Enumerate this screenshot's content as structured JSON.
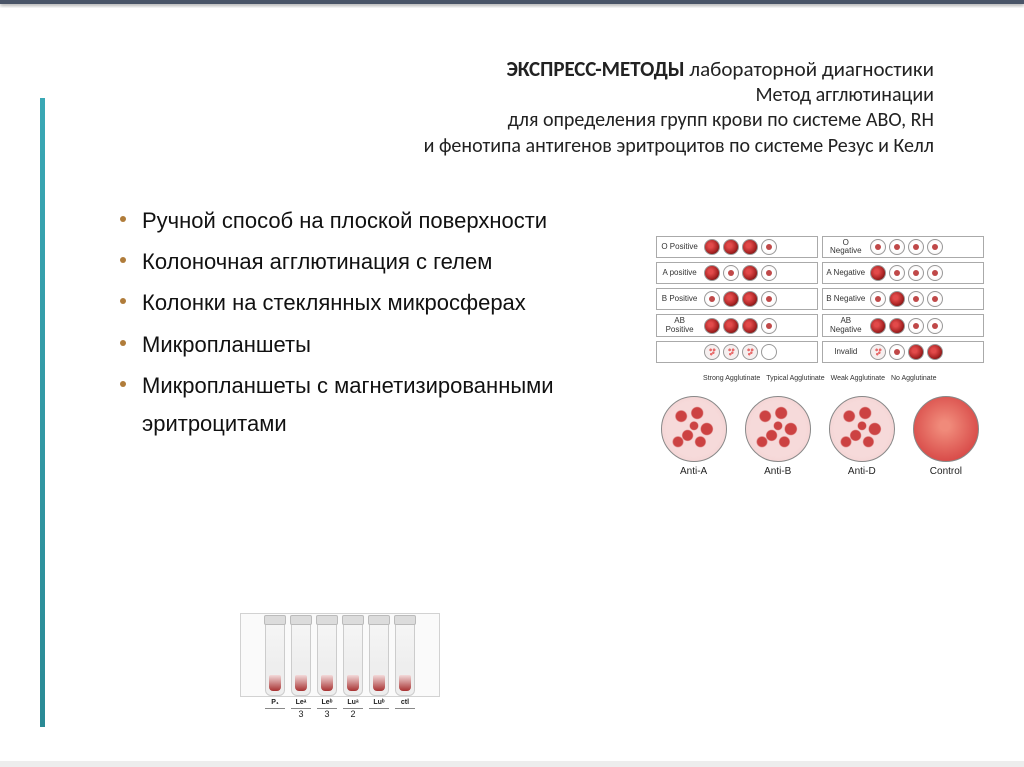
{
  "heading": {
    "line1_bold": "ЭКСПРЕСС-МЕТОДЫ",
    "line1_rest": " лабораторной диагностики",
    "line2": "Метод агглютинации",
    "line3": "для определения групп крови по системе АВО, RH",
    "line4": "и фенотипа антигенов эритроцитов по системе Резус и Келл"
  },
  "bullets": [
    "Ручной способ на плоской поверхности",
    "Колоночная агглютинация с гелем",
    "Колонки на стеклянных микросферах",
    "Микропланшеты",
    "Микропланшеты с магнетизированными эритроцитами"
  ],
  "agg_grid": {
    "rows": [
      {
        "left": {
          "label": "O Positive",
          "pattern": [
            "pos",
            "pos",
            "pos",
            "neg"
          ]
        },
        "right": {
          "label": "O Negative",
          "pattern": [
            "neg",
            "neg",
            "neg",
            "neg"
          ]
        }
      },
      {
        "left": {
          "label": "A positive",
          "pattern": [
            "pos",
            "neg",
            "pos",
            "neg"
          ]
        },
        "right": {
          "label": "A Negative",
          "pattern": [
            "pos",
            "neg",
            "neg",
            "neg"
          ]
        }
      },
      {
        "left": {
          "label": "B Positive",
          "pattern": [
            "neg",
            "pos",
            "pos",
            "neg"
          ]
        },
        "right": {
          "label": "B Negative",
          "pattern": [
            "neg",
            "pos",
            "neg",
            "neg"
          ]
        }
      },
      {
        "left": {
          "label": "AB Positive",
          "pattern": [
            "pos",
            "pos",
            "pos",
            "neg"
          ]
        },
        "right": {
          "label": "AB Negative",
          "pattern": [
            "pos",
            "pos",
            "neg",
            "neg"
          ]
        }
      },
      {
        "left": {
          "label": "",
          "pattern": [
            "speck",
            "speck",
            "speck",
            "blank"
          ],
          "footer": true
        },
        "right": {
          "label": "Invalid",
          "pattern": [
            "speck",
            "neg",
            "pos",
            "pos"
          ]
        }
      }
    ],
    "footer_labels": [
      "Strong Agglutinate",
      "Typical Agglutinate",
      "Weak Agglutinate",
      "No Agglutinate"
    ]
  },
  "big_circles": [
    {
      "label": "Anti-A",
      "style": "coarser"
    },
    {
      "label": "Anti-B",
      "style": "coarser"
    },
    {
      "label": "Anti-D",
      "style": "coarser"
    },
    {
      "label": "Control",
      "style": "smooth"
    }
  ],
  "tube_strip": {
    "top_labels": [
      "P₁",
      "Leᵃ",
      "Leᵇ",
      "Luᵃ",
      "Luᵇ",
      "ctl"
    ],
    "scale": [
      "",
      "3",
      "3",
      "2",
      "",
      ""
    ]
  },
  "colors": {
    "accent": "#3aa8b5",
    "bullet_dot": "#b07c3a"
  }
}
